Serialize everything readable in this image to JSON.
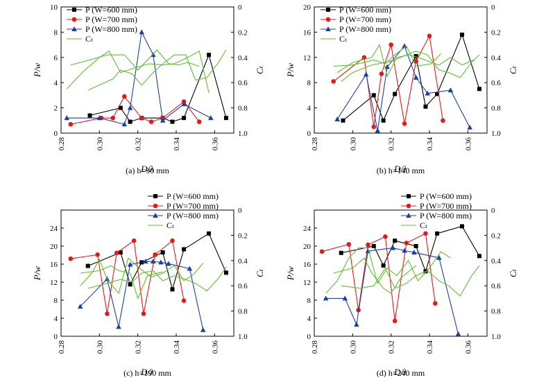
{
  "colors": {
    "w600": "#000000",
    "w700": "#e31a1c",
    "w800": "#1f3f9f",
    "ct": "#5fbf2f"
  },
  "chart_data": [
    {
      "type": "line",
      "caption": "(a) h=90 mm",
      "xlabel": "D/λ",
      "ylabel": "P/w",
      "y2label": "Cₜ",
      "x_ticks": [
        "0.28",
        "0.30",
        "0.32",
        "0.34",
        "0.36"
      ],
      "xlim": [
        0.28,
        0.37
      ],
      "ylim": [
        0,
        10
      ],
      "y_ticks": [
        "0",
        "2",
        "4",
        "6",
        "8",
        "10"
      ],
      "y2lim": [
        1.0,
        0
      ],
      "y2_ticks": [
        "0",
        "0.2",
        "0.4",
        "0.6",
        "0.8",
        "1.0"
      ],
      "legend": [
        "P (W=600 mm)",
        "P (W=700 mm)",
        "P (W=800 mm)",
        "Cₜ"
      ],
      "legend_position": "top-left",
      "series": [
        {
          "name": "P (W=600 mm)",
          "color_key": "w600",
          "marker": "square",
          "axis": "left",
          "x": [
            0.295,
            0.311,
            0.316,
            0.322,
            0.333,
            0.338,
            0.344,
            0.357,
            0.366
          ],
          "y": [
            1.4,
            2.0,
            0.9,
            1.2,
            1.2,
            0.9,
            1.2,
            6.2,
            1.2
          ]
        },
        {
          "name": "P (W=700 mm)",
          "color_key": "w700",
          "marker": "circle",
          "axis": "left",
          "x": [
            0.285,
            0.301,
            0.307,
            0.313,
            0.322,
            0.327,
            0.333,
            0.344,
            0.352
          ],
          "y": [
            0.7,
            1.2,
            1.2,
            2.9,
            1.2,
            0.9,
            1.2,
            2.5,
            0.9
          ]
        },
        {
          "name": "P (W=800 mm)",
          "color_key": "w800",
          "marker": "triangle",
          "axis": "left",
          "x": [
            0.283,
            0.3,
            0.313,
            0.316,
            0.322,
            0.328,
            0.333,
            0.344,
            0.358
          ],
          "y": [
            1.2,
            1.2,
            0.7,
            2.0,
            8.0,
            6.2,
            1.0,
            2.3,
            1.2
          ]
        },
        {
          "name": "Cₜ",
          "color_key": "ct",
          "marker": "none",
          "axis": "right",
          "segments": [
            {
              "x": [
                0.294,
                0.307,
                0.311,
                0.317,
                0.322,
                0.328,
                0.333,
                0.339,
                0.345,
                0.35,
                0.356,
                0.362,
                0.366
              ],
              "y": [
                0.66,
                0.57,
                0.5,
                0.53,
                0.62,
                0.52,
                0.45,
                0.38,
                0.38,
                0.58,
                0.56,
                0.44,
                0.34
              ]
            },
            {
              "x": [
                0.285,
                0.295,
                0.304,
                0.313,
                0.32,
                0.325,
                0.33,
                0.336,
                0.341,
                0.346,
                0.352
              ],
              "y": [
                0.46,
                0.42,
                0.38,
                0.38,
                0.5,
                0.42,
                0.34,
                0.45,
                0.46,
                0.44,
                0.47
              ]
            },
            {
              "x": [
                0.283,
                0.291,
                0.3,
                0.305,
                0.311,
                0.319,
                0.326,
                0.333,
                0.339,
                0.346,
                0.352,
                0.357
              ],
              "y": [
                0.65,
                0.52,
                0.4,
                0.35,
                0.52,
                0.48,
                0.45,
                0.46,
                0.45,
                0.4,
                0.35,
                0.68
              ]
            }
          ]
        }
      ]
    },
    {
      "type": "line",
      "caption": "(b) h=140 mm",
      "xlabel": "D/λ",
      "ylabel": "P/w",
      "y2label": "Cₜ",
      "x_ticks": [
        "0.28",
        "0.30",
        "0.32",
        "0.34",
        "0.36"
      ],
      "xlim": [
        0.28,
        0.37
      ],
      "ylim": [
        0,
        20
      ],
      "y_ticks": [
        "0",
        "4",
        "8",
        "12",
        "16",
        "20"
      ],
      "y2lim": [
        1.0,
        0
      ],
      "y2_ticks": [
        "0",
        "0.2",
        "0.4",
        "0.6",
        "0.8",
        "1.0"
      ],
      "legend": [
        "P (W=600 mm)",
        "P (W=700 mm)",
        "P (W=800 mm)",
        "Cₜ"
      ],
      "legend_position": "top-left",
      "series": [
        {
          "name": "P (W=600 mm)",
          "color_key": "w600",
          "marker": "square",
          "axis": "left",
          "x": [
            0.295,
            0.311,
            0.316,
            0.322,
            0.333,
            0.338,
            0.344,
            0.357,
            0.366
          ],
          "y": [
            2.0,
            6.0,
            2.0,
            6.2,
            12.2,
            4.2,
            6.2,
            15.6,
            7.0
          ]
        },
        {
          "name": "P (W=700 mm)",
          "color_key": "w700",
          "marker": "circle",
          "axis": "left",
          "x": [
            0.29,
            0.306,
            0.311,
            0.315,
            0.32,
            0.327,
            0.333,
            0.34,
            0.347
          ],
          "y": [
            8.2,
            12.0,
            1.0,
            9.4,
            14.0,
            1.5,
            11.4,
            15.4,
            2.0
          ]
        },
        {
          "name": "P (W=800 mm)",
          "color_key": "w800",
          "marker": "triangle",
          "axis": "left",
          "x": [
            0.292,
            0.307,
            0.313,
            0.318,
            0.327,
            0.333,
            0.339,
            0.351,
            0.361
          ],
          "y": [
            2.2,
            9.3,
            0.4,
            10.5,
            13.8,
            8.8,
            6.3,
            6.8,
            0.9
          ]
        },
        {
          "name": "Cₜ",
          "color_key": "ct",
          "marker": "none",
          "axis": "right",
          "segments": [
            {
              "x": [
                0.294,
                0.3,
                0.31,
                0.317,
                0.322,
                0.328,
                0.333,
                0.339,
                0.345,
                0.35,
                0.356,
                0.362,
                0.366
              ],
              "y": [
                0.59,
                0.52,
                0.46,
                0.44,
                0.42,
                0.38,
                0.35,
                0.38,
                0.5,
                0.52,
                0.56,
                0.44,
                0.38
              ]
            },
            {
              "x": [
                0.29,
                0.3,
                0.306,
                0.311,
                0.317,
                0.322,
                0.328,
                0.333,
                0.341,
                0.346
              ],
              "y": [
                0.47,
                0.46,
                0.44,
                0.42,
                0.45,
                0.38,
                0.31,
                0.47,
                0.45,
                0.37
              ]
            },
            {
              "x": [
                0.292,
                0.3,
                0.31,
                0.314,
                0.318,
                0.323,
                0.329,
                0.334,
                0.345,
                0.351,
                0.357,
                0.363
              ],
              "y": [
                0.52,
                0.44,
                0.4,
                0.3,
                0.55,
                0.4,
                0.38,
                0.4,
                0.46,
                0.4,
                0.46,
                0.42
              ]
            }
          ]
        }
      ]
    },
    {
      "type": "line",
      "caption": "(c) h=190 mm",
      "xlabel": "D/λ",
      "ylabel": "P/w",
      "y2label": "Cₜ",
      "x_ticks": [
        "0.28",
        "0.30",
        "0.32",
        "0.34",
        "0.36"
      ],
      "xlim": [
        0.28,
        0.37
      ],
      "ylim": [
        0,
        28
      ],
      "y_ticks": [
        "0",
        "4",
        "8",
        "12",
        "16",
        "20",
        "24"
      ],
      "y2lim": [
        1.0,
        0
      ],
      "y2_ticks": [
        "0",
        "0.2",
        "0.4",
        "0.6",
        "0.8",
        "1.0"
      ],
      "legend": [
        "P (W=600 mm)",
        "P (W=700 mm)",
        "P (W=800 mm)",
        "Cₜ"
      ],
      "legend_position": "top-right",
      "series": [
        {
          "name": "P (W=600 mm)",
          "color_key": "w600",
          "marker": "square",
          "axis": "left",
          "x": [
            0.294,
            0.311,
            0.316,
            0.322,
            0.333,
            0.338,
            0.344,
            0.357,
            0.366
          ],
          "y": [
            15.6,
            18.6,
            11.5,
            16.4,
            18.6,
            10.4,
            19.3,
            22.8,
            14.1
          ]
        },
        {
          "name": "P (W=700 mm)",
          "color_key": "w700",
          "marker": "circle",
          "axis": "left",
          "x": [
            0.285,
            0.299,
            0.304,
            0.309,
            0.318,
            0.323,
            0.329,
            0.338,
            0.344
          ],
          "y": [
            17.2,
            18.1,
            5.0,
            18.5,
            21.2,
            5.0,
            18.1,
            21.2,
            7.9
          ]
        },
        {
          "name": "P (W=800 mm)",
          "color_key": "w800",
          "marker": "triangle",
          "axis": "left",
          "x": [
            0.29,
            0.304,
            0.31,
            0.316,
            0.324,
            0.328,
            0.332,
            0.336,
            0.347,
            0.354
          ],
          "y": [
            6.6,
            12.7,
            2.1,
            15.9,
            16.6,
            16.6,
            16.4,
            16.1,
            15.0,
            1.4
          ]
        },
        {
          "name": "Cₜ",
          "color_key": "ct",
          "marker": "none",
          "axis": "right",
          "segments": [
            {
              "x": [
                0.294,
                0.304,
                0.311,
                0.317,
                0.322,
                0.328,
                0.333,
                0.339,
                0.345,
                0.35,
                0.356,
                0.362,
                0.366
              ],
              "y": [
                0.62,
                0.58,
                0.55,
                0.57,
                0.5,
                0.48,
                0.56,
                0.52,
                0.55,
                0.58,
                0.64,
                0.54,
                0.45
              ]
            },
            {
              "x": [
                0.29,
                0.3,
                0.306,
                0.31,
                0.316,
                0.32,
                0.325,
                0.333
              ],
              "y": [
                0.5,
                0.48,
                0.44,
                0.48,
                0.5,
                0.7,
                0.52,
                0.49
              ]
            },
            {
              "x": [
                0.29,
                0.296,
                0.3,
                0.304,
                0.31,
                0.315,
                0.32,
                0.327,
                0.333,
                0.339,
                0.344,
                0.349,
                0.354
              ],
              "y": [
                0.6,
                0.5,
                0.39,
                0.55,
                0.66,
                0.38,
                0.45,
                0.53,
                0.5,
                0.44,
                0.56,
                0.51,
                0.42
              ]
            }
          ]
        }
      ]
    },
    {
      "type": "line",
      "caption": "(d) h=240 mm",
      "xlabel": "D/λ",
      "ylabel": "P/w",
      "y2label": "Cₜ",
      "x_ticks": [
        "0.28",
        "0.30",
        "0.32",
        "0.34",
        "0.36"
      ],
      "xlim": [
        0.28,
        0.37
      ],
      "ylim": [
        0,
        28
      ],
      "y_ticks": [
        "0",
        "4",
        "8",
        "12",
        "16",
        "20",
        "24"
      ],
      "y2lim": [
        1.0,
        0
      ],
      "y2_ticks": [
        "0",
        "0.2",
        "0.4",
        "0.6",
        "0.8",
        "1.0"
      ],
      "legend": [
        "P (W=600 mm)",
        "P (W=700 mm)",
        "P (W=800 mm)",
        "Cₜ"
      ],
      "legend_position": "top-right",
      "series": [
        {
          "name": "P (W=600 mm)",
          "color_key": "w600",
          "marker": "square",
          "axis": "left",
          "x": [
            0.294,
            0.311,
            0.316,
            0.322,
            0.333,
            0.338,
            0.344,
            0.357,
            0.366
          ],
          "y": [
            18.5,
            20.0,
            15.7,
            21.2,
            20.0,
            14.4,
            22.8,
            24.4,
            17.8
          ]
        },
        {
          "name": "P (W=700 mm)",
          "color_key": "w700",
          "marker": "circle",
          "axis": "left",
          "x": [
            0.284,
            0.298,
            0.303,
            0.308,
            0.317,
            0.322,
            0.328,
            0.338,
            0.343
          ],
          "y": [
            18.8,
            20.4,
            5.8,
            20.3,
            22.1,
            3.4,
            20.7,
            22.8,
            7.3
          ]
        },
        {
          "name": "P (W=800 mm)",
          "color_key": "w800",
          "marker": "triangle",
          "axis": "left",
          "x": [
            0.286,
            0.296,
            0.302,
            0.308,
            0.321,
            0.327,
            0.332,
            0.345,
            0.355
          ],
          "y": [
            8.4,
            8.4,
            2.6,
            18.9,
            19.6,
            19.0,
            18.6,
            17.4,
            0.5
          ]
        },
        {
          "name": "Cₜ",
          "color_key": "ct",
          "marker": "none",
          "axis": "right",
          "segments": [
            {
              "x": [
                0.294,
                0.304,
                0.311,
                0.317,
                0.322,
                0.328,
                0.333,
                0.339,
                0.345,
                0.35,
                0.356,
                0.362,
                0.366
              ],
              "y": [
                0.6,
                0.62,
                0.6,
                0.46,
                0.62,
                0.58,
                0.52,
                0.48,
                0.56,
                0.6,
                0.68,
                0.52,
                0.44
              ]
            },
            {
              "x": [
                0.29,
                0.3,
                0.306,
                0.31,
                0.316,
                0.32,
                0.325,
                0.333
              ],
              "y": [
                0.5,
                0.46,
                0.38,
                0.5,
                0.62,
                0.66,
                0.54,
                0.44
              ]
            },
            {
              "x": [
                0.286,
                0.292,
                0.298,
                0.303,
                0.308,
                0.313,
                0.318,
                0.323,
                0.329,
                0.334,
                0.34,
                0.346,
                0.351
              ],
              "y": [
                0.66,
                0.56,
                0.38,
                0.3,
                0.3,
                0.58,
                0.46,
                0.52,
                0.4,
                0.56,
                0.46,
                0.33,
                0.38
              ]
            }
          ]
        }
      ]
    }
  ]
}
